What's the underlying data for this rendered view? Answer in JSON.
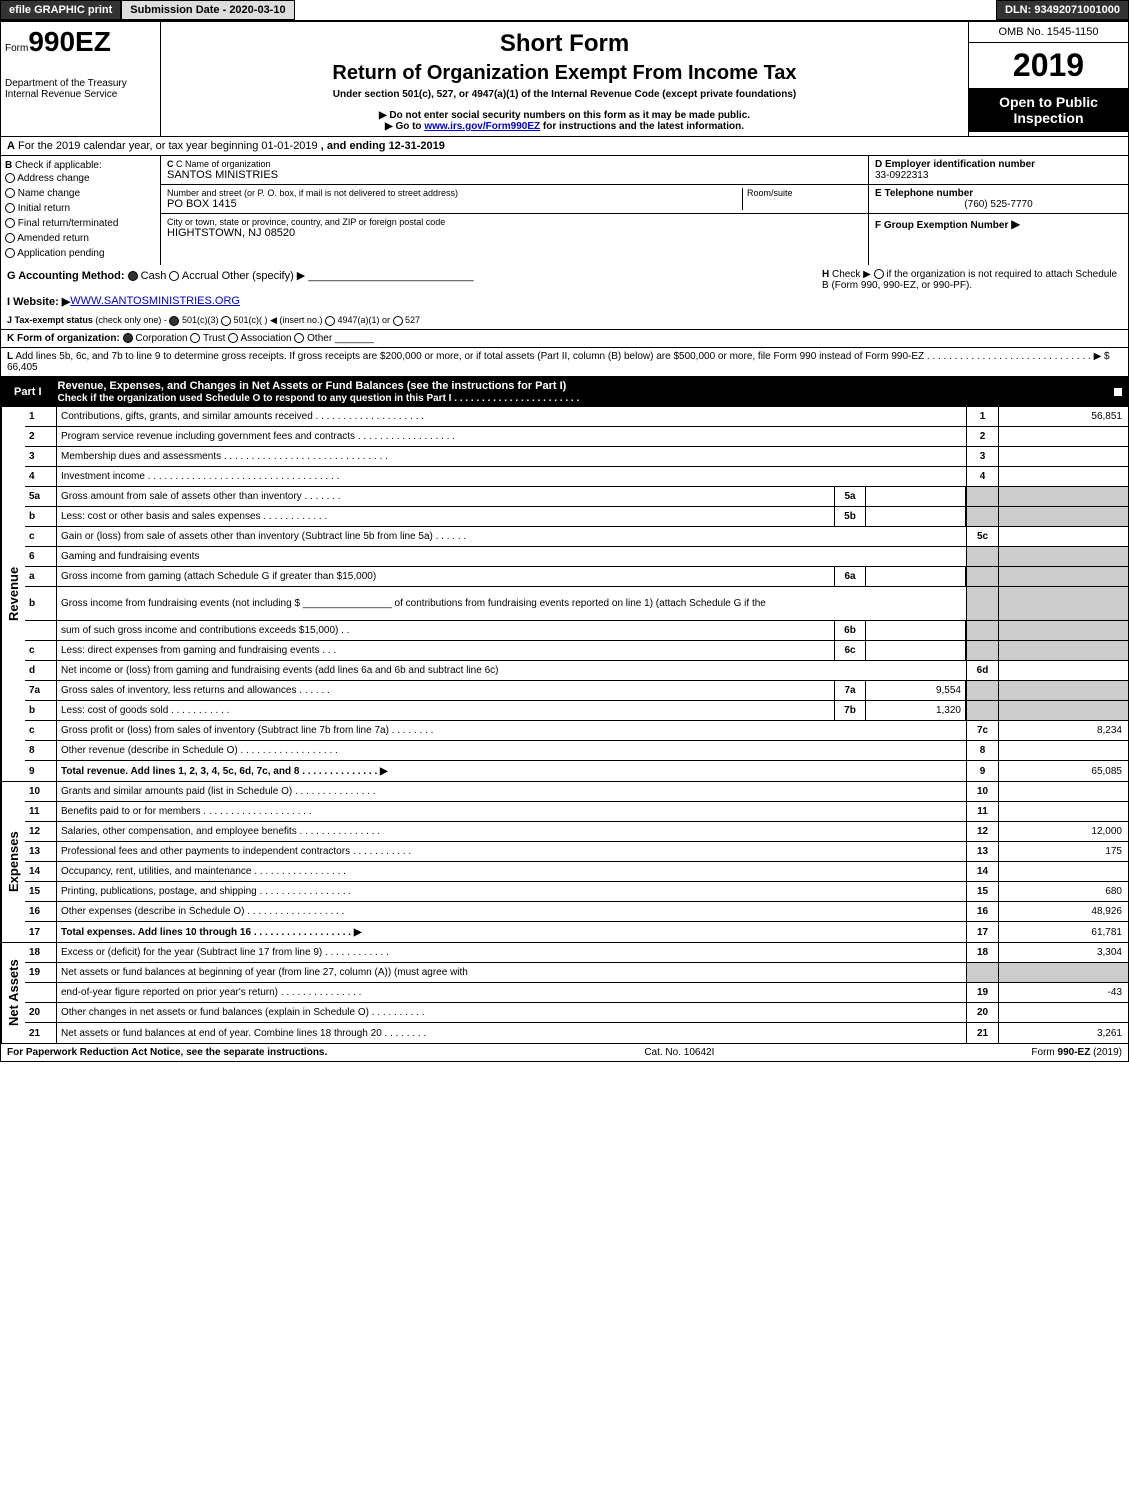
{
  "topbar": {
    "efile": "efile GRAPHIC print",
    "submission": "Submission Date - 2020-03-10",
    "dln": "DLN: 93492071001000"
  },
  "header": {
    "form_prefix": "Form",
    "form_number": "990EZ",
    "dept1": "Department of the Treasury",
    "dept2": "Internal Revenue Service",
    "title1": "Short Form",
    "title2": "Return of Organization Exempt From Income Tax",
    "subtitle": "Under section 501(c), 527, or 4947(a)(1) of the Internal Revenue Code (except private foundations)",
    "warn": "▶ Do not enter social security numbers on this form as it may be made public.",
    "goto_prefix": "▶ Go to ",
    "goto_link": "www.irs.gov/Form990EZ",
    "goto_suffix": " for instructions and the latest information.",
    "omb": "OMB No. 1545-1150",
    "year": "2019",
    "open": "Open to Public Inspection"
  },
  "section_a": {
    "label": "A",
    "text_1": "For the 2019 calendar year, or tax year beginning 01-01-2019",
    "text_2": ", and ending 12-31-2019"
  },
  "section_b": {
    "label": "B",
    "heading": "Check if applicable:",
    "items": [
      "Address change",
      "Name change",
      "Initial return",
      "Final return/terminated",
      "Amended return",
      "Application pending"
    ]
  },
  "section_c": {
    "label_name": "C Name of organization",
    "org_name": "SANTOS MINISTRIES",
    "label_addr": "Number and street (or P. O. box, if mail is not delivered to street address)",
    "addr": "PO BOX 1415",
    "room_label": "Room/suite",
    "label_city": "City or town, state or province, country, and ZIP or foreign postal code",
    "city": "HIGHTSTOWN, NJ  08520"
  },
  "section_d": {
    "label": "D Employer identification number",
    "value": "33-0922313"
  },
  "section_e": {
    "label": "E Telephone number",
    "value": "(760) 525-7770"
  },
  "section_f": {
    "label": "F Group Exemption Number",
    "arrow": "▶"
  },
  "section_g": {
    "label": "G Accounting Method:",
    "cash": "Cash",
    "accrual": "Accrual",
    "other": "Other (specify) ▶"
  },
  "section_h": {
    "label": "H",
    "text1": "Check ▶",
    "text2": "if the organization is not required to attach Schedule B (Form 990, 990-EZ, or 990-PF)."
  },
  "section_i": {
    "label": "I Website: ▶",
    "value": "WWW.SANTOSMINISTRIES.ORG"
  },
  "section_j": {
    "label": "J Tax-exempt status",
    "note": "(check only one) -",
    "opt1": "501(c)(3)",
    "opt2": "501(c)(  ) ◀ (insert no.)",
    "opt3": "4947(a)(1) or",
    "opt4": "527"
  },
  "section_k": {
    "label": "K Form of organization:",
    "opts": [
      "Corporation",
      "Trust",
      "Association",
      "Other"
    ]
  },
  "section_l": {
    "label": "L",
    "text": "Add lines 5b, 6c, and 7b to line 9 to determine gross receipts. If gross receipts are $200,000 or more, or if total assets (Part II, column (B) below) are $500,000 or more, file Form 990 instead of Form 990-EZ  . . . . . . . . . . . . . . . . . . . . . . . . . . . . . . ▶ $ 66,405"
  },
  "part1": {
    "label": "Part I",
    "title": "Revenue, Expenses, and Changes in Net Assets or Fund Balances (see the instructions for Part I)",
    "check_note": "Check if the organization used Schedule O to respond to any question in this Part I . . . . . . . . . . . . . . . . . . . . . . ."
  },
  "revenue": {
    "side": "Revenue",
    "rows": [
      {
        "n": "1",
        "desc": "Contributions, gifts, grants, and similar amounts received . . . . . . . . . . . . . . . . . . . .",
        "rn": "1",
        "rv": "56,851"
      },
      {
        "n": "2",
        "desc": "Program service revenue including government fees and contracts . . . . . . . . . . . . . . . . . .",
        "rn": "2",
        "rv": ""
      },
      {
        "n": "3",
        "desc": "Membership dues and assessments . . . . . . . . . . . . . . . . . . . . . . . . . . . . . .",
        "rn": "3",
        "rv": ""
      },
      {
        "n": "4",
        "desc": "Investment income . . . . . . . . . . . . . . . . . . . . . . . . . . . . . . . . . . .",
        "rn": "4",
        "rv": ""
      },
      {
        "n": "5a",
        "desc": "Gross amount from sale of assets other than inventory . . . . . . .",
        "mn": "5a",
        "mv": "",
        "shaded": true
      },
      {
        "n": "b",
        "desc": "Less: cost or other basis and sales expenses . . . . . . . . . . . .",
        "mn": "5b",
        "mv": "",
        "shaded": true
      },
      {
        "n": "c",
        "desc": "Gain or (loss) from sale of assets other than inventory (Subtract line 5b from line 5a)            .  .  .  .  .  .",
        "rn": "5c",
        "rv": ""
      },
      {
        "n": "6",
        "desc": "Gaming and fundraising events",
        "shaded": true
      },
      {
        "n": "a",
        "desc": "Gross income from gaming (attach Schedule G if greater than $15,000)",
        "mn": "6a",
        "mv": "",
        "shaded": true
      },
      {
        "n": "b",
        "desc": "Gross income from fundraising events (not including $ ________________ of contributions from fundraising events reported on line 1) (attach Schedule G if the",
        "shaded": true,
        "tall": true
      },
      {
        "n": "",
        "desc": "sum of such gross income and contributions exceeds $15,000)               .  .",
        "mn": "6b",
        "mv": "",
        "shaded": true
      },
      {
        "n": "c",
        "desc": "Less: direct expenses from gaming and fundraising events               .  .  .",
        "mn": "6c",
        "mv": "",
        "shaded": true
      },
      {
        "n": "d",
        "desc": "Net income or (loss) from gaming and fundraising events (add lines 6a and 6b and subtract line 6c)",
        "rn": "6d",
        "rv": ""
      },
      {
        "n": "7a",
        "desc": "Gross sales of inventory, less returns and allowances               .  .  .  .  .  .",
        "mn": "7a",
        "mv": "9,554",
        "shaded": true
      },
      {
        "n": "b",
        "desc": "Less: cost of goods sold                                    .  .  .  .  .  .  .  .  .  .  .",
        "mn": "7b",
        "mv": "1,320",
        "shaded": true
      },
      {
        "n": "c",
        "desc": "Gross profit or (loss) from sales of inventory (Subtract line 7b from line 7a)           .  .  .  .  .  .  .  .",
        "rn": "7c",
        "rv": "8,234"
      },
      {
        "n": "8",
        "desc": "Other revenue (describe in Schedule O)               .  .  .  .  .  .  .  .  .  .  .  .  .  .  .  .  .  .",
        "rn": "8",
        "rv": ""
      },
      {
        "n": "9",
        "desc": "Total revenue. Add lines 1, 2, 3, 4, 5c, 6d, 7c, and 8               .  .  .  .  .  .  .  .  .  .  .  .  .  . ▶",
        "rn": "9",
        "rv": "65,085",
        "bold": true
      }
    ]
  },
  "expenses": {
    "side": "Expenses",
    "rows": [
      {
        "n": "10",
        "desc": "Grants and similar amounts paid (list in Schedule O)               .  .  .  .  .  .  .  .  .  .  .  .  .  .  .",
        "rn": "10",
        "rv": ""
      },
      {
        "n": "11",
        "desc": "Benefits paid to or for members               .  .  .  .  .  .  .  .  .  .  .  .  .  .  .  .  .  .  .  .",
        "rn": "11",
        "rv": ""
      },
      {
        "n": "12",
        "desc": "Salaries, other compensation, and employee benefits               .  .  .  .  .  .  .  .  .  .  .  .  .  .  .",
        "rn": "12",
        "rv": "12,000"
      },
      {
        "n": "13",
        "desc": "Professional fees and other payments to independent contractors               .  .  .  .  .  .  .  .  .  .  .",
        "rn": "13",
        "rv": "175"
      },
      {
        "n": "14",
        "desc": "Occupancy, rent, utilities, and maintenance               .  .  .  .  .  .  .  .  .  .  .  .  .  .  .  .  .",
        "rn": "14",
        "rv": ""
      },
      {
        "n": "15",
        "desc": "Printing, publications, postage, and shipping               .  .  .  .  .  .  .  .  .  .  .  .  .  .  .  .  .",
        "rn": "15",
        "rv": "680"
      },
      {
        "n": "16",
        "desc": "Other expenses (describe in Schedule O)               .  .  .  .  .  .  .  .  .  .  .  .  .  .  .  .  .  .",
        "rn": "16",
        "rv": "48,926"
      },
      {
        "n": "17",
        "desc": "Total expenses. Add lines 10 through 16               .  .  .  .  .  .  .  .  .  .  .  .  .  .  .  .  .  . ▶",
        "rn": "17",
        "rv": "61,781",
        "bold": true
      }
    ]
  },
  "netassets": {
    "side": "Net Assets",
    "rows": [
      {
        "n": "18",
        "desc": "Excess or (deficit) for the year (Subtract line 17 from line 9)               .  .  .  .  .  .  .  .  .  .  .  .",
        "rn": "18",
        "rv": "3,304"
      },
      {
        "n": "19",
        "desc": "Net assets or fund balances at beginning of year (from line 27, column (A)) (must agree with",
        "shaded": true
      },
      {
        "n": "",
        "desc": "end-of-year figure reported on prior year's return)               .  .  .  .  .  .  .  .  .  .  .  .  .  .  .",
        "rn": "19",
        "rv": "-43"
      },
      {
        "n": "20",
        "desc": "Other changes in net assets or fund balances (explain in Schedule O)               .  .  .  .  .  .  .  .  .  .",
        "rn": "20",
        "rv": ""
      },
      {
        "n": "21",
        "desc": "Net assets or fund balances at end of year. Combine lines 18 through 20              .  .  .  .  .  .  .  .",
        "rn": "21",
        "rv": "3,261"
      }
    ]
  },
  "footer": {
    "left": "For Paperwork Reduction Act Notice, see the separate instructions.",
    "center": "Cat. No. 10642I",
    "right": "Form 990-EZ (2019)"
  }
}
